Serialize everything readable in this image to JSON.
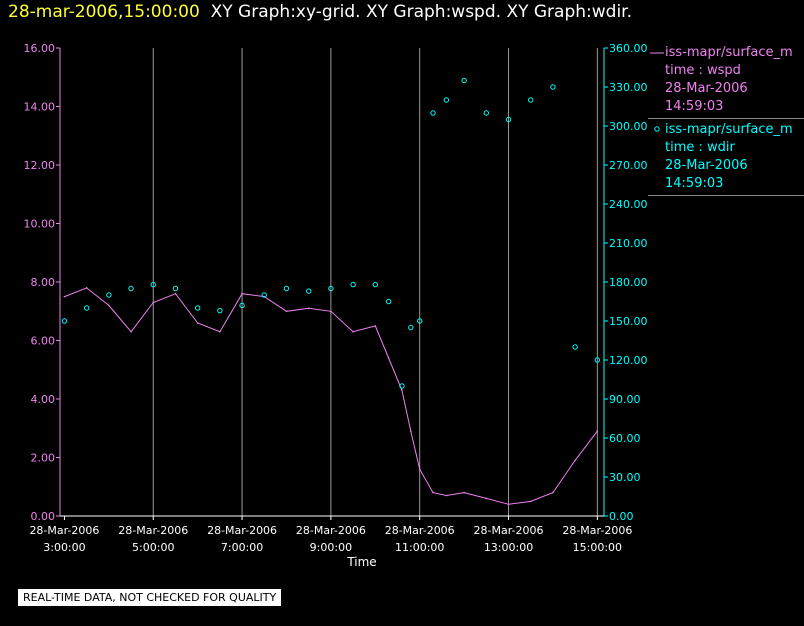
{
  "header": {
    "timestamp": "28-mar-2006,15:00:00",
    "graphs": "XY Graph:xy-grid.  XY Graph:wspd.  XY Graph:wdir."
  },
  "footer": {
    "note": "REAL-TIME DATA, NOT CHECKED FOR QUALITY"
  },
  "legend": [
    {
      "series": "iss-mapr/surface_m",
      "field": "time : wspd",
      "date": "28-Mar-2006",
      "time": "14:59:03",
      "color": "#ee82ee",
      "style": "line"
    },
    {
      "series": "iss-mapr/surface_m",
      "field": "time : wdir",
      "date": "28-Mar-2006",
      "time": "14:59:03",
      "color": "#00ffff",
      "style": "circle"
    }
  ],
  "chart_data": {
    "type": "line",
    "xlabel": "Time",
    "x_ticks": [
      {
        "date": "28-Mar-2006",
        "time": "3:00:00"
      },
      {
        "date": "28-Mar-2006",
        "time": "5:00:00"
      },
      {
        "date": "28-Mar-2006",
        "time": "7:00:00"
      },
      {
        "date": "28-Mar-2006",
        "time": "9:00:00"
      },
      {
        "date": "28-Mar-2006",
        "time": "11:00:00"
      },
      {
        "date": "28-Mar-2006",
        "time": "13:00:00"
      },
      {
        "date": "28-Mar-2006",
        "time": "15:00:00"
      }
    ],
    "xlim_hours": [
      2.9,
      15.15
    ],
    "grid": "vertical",
    "y_left": {
      "ylim": [
        0,
        16
      ],
      "ticks": [
        "0.00",
        "2.00",
        "4.00",
        "6.00",
        "8.00",
        "10.00",
        "12.00",
        "14.00",
        "16.00"
      ],
      "color": "#ee82ee"
    },
    "y_right": {
      "ylim": [
        0,
        360
      ],
      "ticks": [
        "0.00",
        "30.00",
        "60.00",
        "90.00",
        "120.00",
        "150.00",
        "180.00",
        "210.00",
        "240.00",
        "270.00",
        "300.00",
        "330.00",
        "360.00"
      ],
      "color": "#00ffff"
    },
    "series": [
      {
        "name": "iss-mapr/surface_m time : wspd",
        "axis": "left",
        "style": "line",
        "color": "#ee82ee",
        "x": [
          3.0,
          3.5,
          4.0,
          4.5,
          5.0,
          5.5,
          6.0,
          6.5,
          7.0,
          7.5,
          8.0,
          8.5,
          9.0,
          9.5,
          10.0,
          10.3,
          10.6,
          10.8,
          11.0,
          11.3,
          11.6,
          12.0,
          12.5,
          13.0,
          13.5,
          14.0,
          14.5,
          15.0
        ],
        "y": [
          7.5,
          7.8,
          7.2,
          6.3,
          7.3,
          7.6,
          6.6,
          6.3,
          7.6,
          7.5,
          7.0,
          7.1,
          7.0,
          6.3,
          6.5,
          5.4,
          4.3,
          2.9,
          1.6,
          0.8,
          0.7,
          0.8,
          0.6,
          0.4,
          0.5,
          0.8,
          1.9,
          2.9
        ]
      },
      {
        "name": "iss-mapr/surface_m time : wdir",
        "axis": "right",
        "style": "scatter",
        "color": "#00ffff",
        "x": [
          3.0,
          3.5,
          4.0,
          4.5,
          5.0,
          5.5,
          6.0,
          6.5,
          7.0,
          7.5,
          8.0,
          8.5,
          9.0,
          9.5,
          10.0,
          10.3,
          10.6,
          10.8,
          11.0,
          11.3,
          11.6,
          12.0,
          12.5,
          13.0,
          13.5,
          14.0,
          14.5,
          15.0
        ],
        "y": [
          150,
          160,
          170,
          175,
          178,
          175,
          160,
          158,
          162,
          170,
          175,
          173,
          175,
          178,
          178,
          165,
          100,
          145,
          150,
          310,
          320,
          335,
          310,
          305,
          320,
          330,
          130,
          120
        ]
      }
    ]
  }
}
